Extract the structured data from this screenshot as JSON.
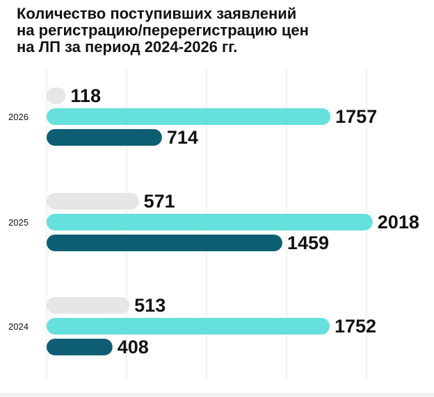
{
  "title_lines": [
    "Количество поступивших заявлений",
    "на регистрацию/перерегистрацию цен",
    "на ЛП за период 2024-2026 гг."
  ],
  "colors": {
    "series1": "#e6e6e6",
    "series2": "#65e0dc",
    "series3": "#0e5e73",
    "grid": "#e4e4e4",
    "text": "#111111"
  },
  "chart_data": {
    "type": "bar",
    "orientation": "horizontal",
    "title": "Количество поступивших заявлений на регистрацию/перерегистрацию цен на ЛП за период 2024-2026 гг.",
    "categories": [
      "2026",
      "2025",
      "2024"
    ],
    "series": [
      {
        "values": [
          118,
          571,
          513
        ]
      },
      {
        "values": [
          1757,
          2018,
          1752
        ]
      },
      {
        "values": [
          714,
          1459,
          408
        ]
      }
    ],
    "xlim": [
      0,
      2100
    ],
    "grid": true,
    "legend": "none"
  }
}
